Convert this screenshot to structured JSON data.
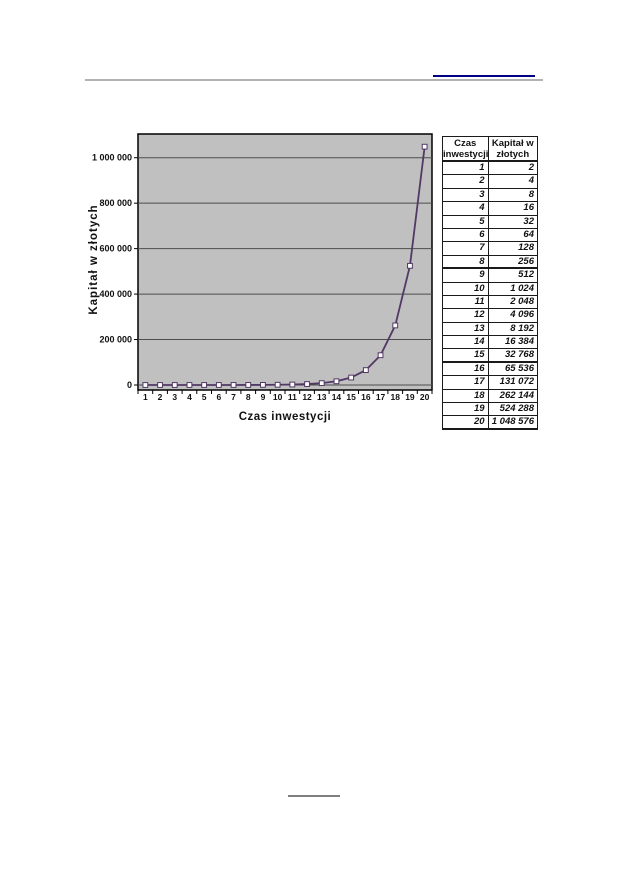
{
  "decorations": {
    "header_rule_color": "#b2b2b2",
    "header_accent_color": "#000080",
    "footnote_rule_color": "#7f7f7f"
  },
  "chart_data": {
    "type": "line",
    "title": "",
    "xlabel": "Czas inwestycji",
    "ylabel": "Kapitał w złotych",
    "x": [
      1,
      2,
      3,
      4,
      5,
      6,
      7,
      8,
      9,
      10,
      11,
      12,
      13,
      14,
      15,
      16,
      17,
      18,
      19,
      20
    ],
    "values": [
      2,
      4,
      8,
      16,
      32,
      64,
      128,
      256,
      512,
      1024,
      2048,
      4096,
      8192,
      16384,
      32768,
      65536,
      131072,
      262144,
      524288,
      1048576
    ],
    "ylim": [
      0,
      1100000
    ],
    "ytick_interval": 200000,
    "ytick_labels": [
      "0",
      "200 000",
      "400 000",
      "600 000",
      "800 000",
      "1 000 000"
    ],
    "xtick_labels": [
      "1",
      "2",
      "3",
      "4",
      "5",
      "6",
      "7",
      "8",
      "9",
      "10",
      "11",
      "12",
      "13",
      "14",
      "15",
      "16",
      "17",
      "18",
      "19",
      "20"
    ],
    "grid": true,
    "legend": false,
    "plot_bg": "#c0c0c0",
    "grid_color": "#4d4d4d",
    "series_color": "#523864",
    "marker": "white-square"
  },
  "table": {
    "columns": [
      "Czas inwestycji",
      "Kapitał w złotych"
    ],
    "thick_row_separators_after": [
      "8",
      "15"
    ],
    "rows": [
      [
        "1",
        "2"
      ],
      [
        "2",
        "4"
      ],
      [
        "3",
        "8"
      ],
      [
        "4",
        "16"
      ],
      [
        "5",
        "32"
      ],
      [
        "6",
        "64"
      ],
      [
        "7",
        "128"
      ],
      [
        "8",
        "256"
      ],
      [
        "9",
        "512"
      ],
      [
        "10",
        "1 024"
      ],
      [
        "11",
        "2 048"
      ],
      [
        "12",
        "4 096"
      ],
      [
        "13",
        "8 192"
      ],
      [
        "14",
        "16 384"
      ],
      [
        "15",
        "32 768"
      ],
      [
        "16",
        "65 536"
      ],
      [
        "17",
        "131 072"
      ],
      [
        "18",
        "262 144"
      ],
      [
        "19",
        "524 288"
      ],
      [
        "20",
        "1 048 576"
      ]
    ]
  }
}
